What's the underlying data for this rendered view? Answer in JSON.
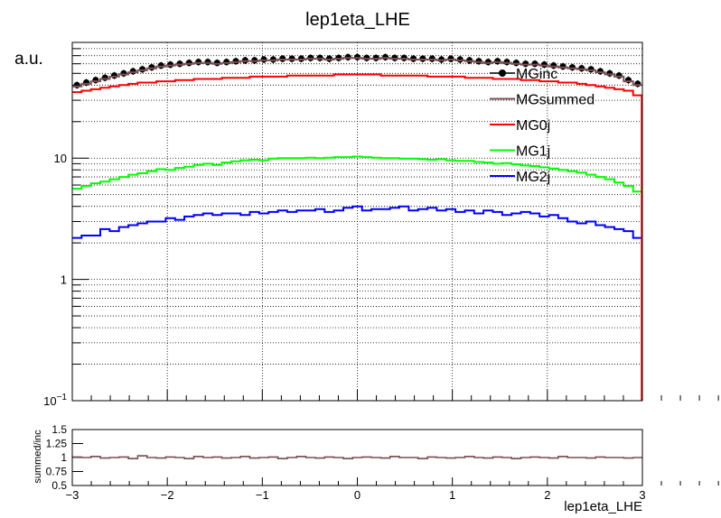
{
  "chart_data": [
    {
      "type": "line",
      "title": "lep1eta_LHE",
      "ylabel": "a.u.",
      "xlabel": "",
      "xlim": [
        -3,
        3
      ],
      "ylim": [
        0.1,
        90
      ],
      "yscale": "log",
      "grid": true,
      "legend_position": "top-right",
      "x_ticks": [
        {
          "v": -3,
          "label": "−3"
        },
        {
          "v": -2,
          "label": "−2"
        },
        {
          "v": -1,
          "label": "−1"
        },
        {
          "v": 0,
          "label": "0"
        },
        {
          "v": 1,
          "label": "1"
        },
        {
          "v": 2,
          "label": "2"
        },
        {
          "v": 3,
          "label": "3"
        }
      ],
      "y_ticks": [
        {
          "v": 0.1,
          "base": "10",
          "exp": "−1"
        },
        {
          "v": 1,
          "base": "1",
          "exp": ""
        },
        {
          "v": 10,
          "base": "10",
          "exp": ""
        }
      ],
      "series": [
        {
          "name": "MGinc",
          "color": "#000000",
          "style": "markers",
          "values": [
            40,
            42,
            44,
            46,
            48,
            50,
            52,
            54,
            56,
            58,
            59,
            60,
            61,
            62,
            62,
            61,
            62,
            63,
            64,
            64,
            65,
            65,
            66,
            66,
            66,
            67,
            67,
            66,
            67,
            68,
            68,
            67,
            67,
            68,
            67,
            67,
            66,
            66,
            66,
            65,
            66,
            65,
            64,
            63,
            62,
            63,
            62,
            61,
            60,
            60,
            59,
            58,
            57,
            56,
            55,
            54,
            52,
            50,
            48,
            44,
            41
          ]
        },
        {
          "name": "MGsummed",
          "color": "#7a4f55",
          "style": "step",
          "values": [
            39,
            41,
            43,
            45,
            47,
            49,
            51,
            53,
            55,
            57,
            58,
            59,
            60,
            61,
            61,
            60,
            61,
            62,
            63,
            63,
            64,
            64,
            65,
            65,
            65,
            66,
            66,
            65,
            66,
            67,
            67,
            66,
            66,
            67,
            66,
            66,
            65,
            65,
            65,
            64,
            65,
            64,
            63,
            62,
            61,
            62,
            61,
            60,
            59,
            59,
            58,
            57,
            56,
            55,
            54,
            53,
            51,
            49,
            47,
            43,
            40
          ]
        },
        {
          "name": "MG0j",
          "color": "#ff0000",
          "style": "step",
          "values": [
            35,
            36,
            37,
            38,
            39,
            40,
            41,
            42,
            42,
            43,
            43,
            44,
            44,
            45,
            45,
            45,
            46,
            46,
            46,
            47,
            47,
            47,
            47,
            48,
            48,
            48,
            48,
            48,
            49,
            49,
            49,
            49,
            49,
            48,
            48,
            48,
            48,
            48,
            47,
            47,
            47,
            47,
            46,
            46,
            46,
            45,
            45,
            45,
            44,
            44,
            43,
            43,
            42,
            42,
            41,
            40,
            39,
            38,
            37,
            36,
            33
          ]
        },
        {
          "name": "MG1j",
          "color": "#00ff00",
          "style": "step",
          "values": [
            5.6,
            5.9,
            6.2,
            6.4,
            6.7,
            7.0,
            7.3,
            7.5,
            7.8,
            8.1,
            8.0,
            8.3,
            8.5,
            8.8,
            9.0,
            8.8,
            9.2,
            9.4,
            9.6,
            9.7,
            9.6,
            9.9,
            10.0,
            10.0,
            10.0,
            10.1,
            10.0,
            10.1,
            10.2,
            10.2,
            10.3,
            10.2,
            10.1,
            10.0,
            10.0,
            9.9,
            9.9,
            9.8,
            9.7,
            9.8,
            9.6,
            9.5,
            9.5,
            9.3,
            9.2,
            9.0,
            9.1,
            8.9,
            8.7,
            8.6,
            8.4,
            8.2,
            8.0,
            7.8,
            7.6,
            7.3,
            7.0,
            6.7,
            6.3,
            5.9,
            5.3
          ]
        },
        {
          "name": "MG2j",
          "color": "#0000ff",
          "style": "step",
          "values": [
            2.2,
            2.3,
            2.3,
            2.6,
            2.5,
            2.7,
            2.8,
            2.9,
            3.0,
            3.0,
            3.2,
            3.1,
            3.3,
            3.4,
            3.5,
            3.4,
            3.5,
            3.5,
            3.4,
            3.6,
            3.5,
            3.6,
            3.7,
            3.6,
            3.7,
            3.7,
            3.8,
            3.6,
            3.7,
            3.9,
            4.0,
            3.7,
            3.8,
            3.8,
            3.9,
            4.0,
            3.7,
            3.8,
            3.9,
            3.7,
            3.8,
            3.6,
            3.7,
            3.5,
            3.7,
            3.6,
            3.4,
            3.5,
            3.6,
            3.5,
            3.3,
            3.4,
            3.2,
            3.0,
            2.9,
            3.0,
            2.8,
            2.7,
            2.6,
            2.5,
            2.2
          ]
        }
      ]
    },
    {
      "type": "line",
      "xlabel": "lep1eta_LHE",
      "ylabel": "summed/inc",
      "xlim": [
        -3,
        3
      ],
      "ylim": [
        0.5,
        1.5
      ],
      "grid": false,
      "y_ticks": [
        {
          "v": 0.5,
          "label": "0.5"
        },
        {
          "v": 0.75,
          "label": "0.75"
        },
        {
          "v": 1,
          "label": "1"
        },
        {
          "v": 1.25,
          "label": "1.25"
        },
        {
          "v": 1.5,
          "label": "1.5"
        }
      ],
      "series": [
        {
          "color": "#7a4f55",
          "style": "step",
          "values": [
            1.01,
            1.0,
            1.02,
            0.99,
            1.0,
            1.01,
            0.98,
            1.03,
            1.0,
            0.99,
            1.01,
            1.0,
            0.98,
            1.02,
            1.0,
            1.01,
            0.99,
            1.0,
            1.02,
            0.99,
            1.0,
            1.01,
            0.98,
            1.0,
            1.02,
            1.0,
            0.99,
            1.01,
            1.0,
            0.98,
            1.0,
            1.01,
            1.0,
            0.99,
            1.02,
            1.0,
            1.0,
            0.98,
            1.01,
            1.0,
            0.99,
            1.0,
            1.02,
            1.0,
            0.99,
            1.01,
            1.0,
            0.98,
            1.0,
            1.01,
            1.0,
            0.99,
            1.02,
            1.0,
            1.0,
            0.99,
            1.01,
            1.0,
            1.0,
            0.99,
            1.0
          ]
        }
      ]
    }
  ]
}
